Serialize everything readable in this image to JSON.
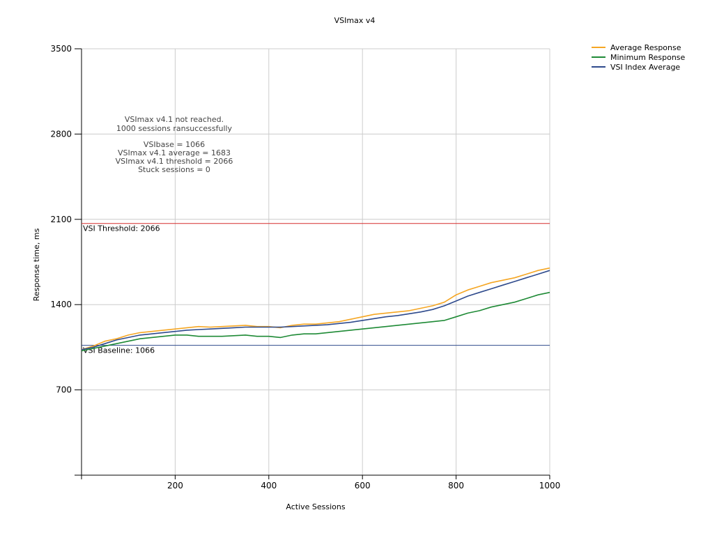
{
  "chart_data": {
    "type": "line",
    "title": "VSImax v4",
    "xlabel": "Active Sessions",
    "ylabel": "Response time, ms",
    "xlim": [
      0,
      1000
    ],
    "ylim": [
      0,
      3500
    ],
    "x_ticks": [
      200,
      400,
      600,
      800,
      1000
    ],
    "y_ticks": [
      700,
      1400,
      2100,
      2800,
      3500
    ],
    "grid": true,
    "legend_position": "top-right",
    "legend": [
      {
        "name": "Average Response",
        "color": "#f5a623"
      },
      {
        "name": "Minimum Response",
        "color": "#1e8a35"
      },
      {
        "name": "VSI Index Average",
        "color": "#2e4a8c"
      }
    ],
    "x": [
      0,
      25,
      50,
      75,
      100,
      125,
      150,
      175,
      200,
      225,
      250,
      275,
      300,
      325,
      350,
      375,
      400,
      425,
      450,
      475,
      500,
      525,
      550,
      575,
      600,
      625,
      650,
      675,
      700,
      725,
      750,
      775,
      800,
      825,
      850,
      875,
      900,
      925,
      950,
      975,
      1000
    ],
    "series": [
      {
        "name": "Average Response",
        "color": "#f5a623",
        "values": [
          1030,
          1060,
          1100,
          1120,
          1150,
          1170,
          1180,
          1190,
          1200,
          1210,
          1220,
          1215,
          1220,
          1225,
          1230,
          1220,
          1220,
          1210,
          1230,
          1240,
          1240,
          1250,
          1260,
          1280,
          1300,
          1320,
          1330,
          1340,
          1350,
          1370,
          1390,
          1420,
          1480,
          1520,
          1550,
          1580,
          1600,
          1620,
          1650,
          1680,
          1700
        ]
      },
      {
        "name": "Minimum Response",
        "color": "#1e8a35",
        "values": [
          1020,
          1040,
          1060,
          1080,
          1100,
          1120,
          1130,
          1140,
          1150,
          1150,
          1140,
          1140,
          1140,
          1145,
          1150,
          1140,
          1140,
          1130,
          1150,
          1160,
          1160,
          1170,
          1180,
          1190,
          1200,
          1210,
          1220,
          1230,
          1240,
          1250,
          1260,
          1270,
          1300,
          1330,
          1350,
          1380,
          1400,
          1420,
          1450,
          1480,
          1500
        ]
      },
      {
        "name": "VSI Index Average",
        "color": "#2e4a8c",
        "values": [
          1030,
          1050,
          1080,
          1110,
          1130,
          1150,
          1160,
          1170,
          1180,
          1190,
          1195,
          1200,
          1205,
          1210,
          1215,
          1215,
          1215,
          1215,
          1220,
          1225,
          1230,
          1235,
          1245,
          1255,
          1270,
          1285,
          1300,
          1310,
          1325,
          1340,
          1360,
          1390,
          1430,
          1470,
          1500,
          1530,
          1560,
          1590,
          1620,
          1650,
          1680
        ]
      }
    ],
    "reference_lines": [
      {
        "name": "VSI Threshold",
        "label": "VSI Threshold: 2066",
        "value": 2066,
        "color": "#d62b2b"
      },
      {
        "name": "VSI Baseline",
        "label": "VSI Baseline: 1066",
        "value": 1066,
        "color": "#2e4a8c"
      }
    ],
    "annotations": [
      "VSImax v4.1 not reached.",
      "1000 sessions ransuccessfully",
      "VSIbase = 1066",
      "VSImax v4.1 average = 1683",
      "VSImax v4.1 threshold = 2066",
      "Stuck sessions = 0"
    ]
  }
}
